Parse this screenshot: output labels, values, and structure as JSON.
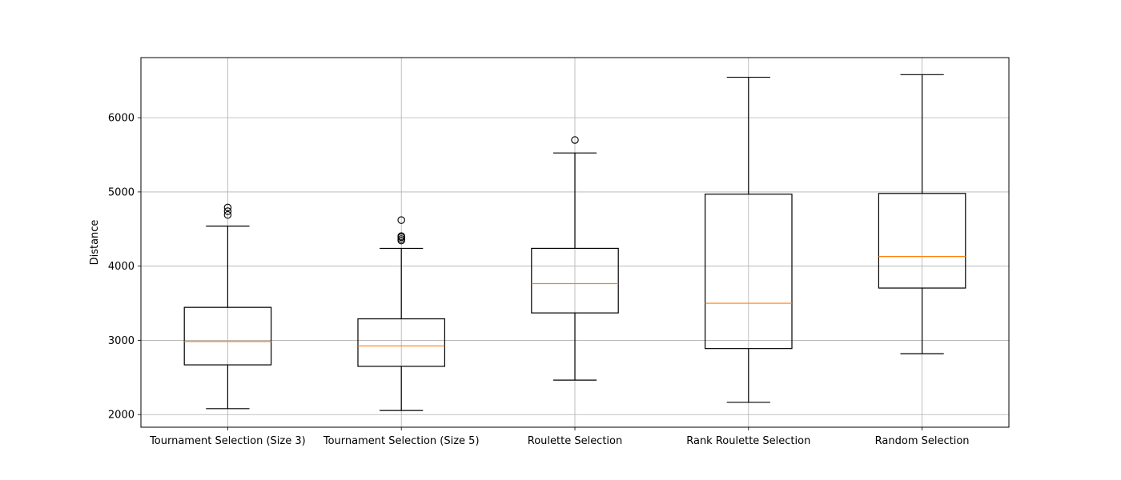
{
  "chart_data": {
    "type": "box",
    "title": "",
    "xlabel": "",
    "ylabel": "Distance",
    "ylim": [
      1830,
      6810
    ],
    "yticks": [
      2000,
      3000,
      4000,
      5000,
      6000
    ],
    "grid": true,
    "categories": [
      "Tournament Selection (Size 3)",
      "Tournament Selection (Size 5)",
      "Roulette Selection",
      "Rank Roulette Selection",
      "Random Selection"
    ],
    "boxes": [
      {
        "whisker_low": 2080,
        "q1": 2670,
        "median": 2985,
        "q3": 3445,
        "whisker_high": 4540,
        "outliers": [
          4690,
          4740,
          4790
        ]
      },
      {
        "whisker_low": 2055,
        "q1": 2650,
        "median": 2925,
        "q3": 3290,
        "whisker_high": 4240,
        "outliers": [
          4345,
          4365,
          4390,
          4405,
          4620
        ]
      },
      {
        "whisker_low": 2465,
        "q1": 3370,
        "median": 3765,
        "q3": 4240,
        "whisker_high": 5525,
        "outliers": [
          5700
        ]
      },
      {
        "whisker_low": 2165,
        "q1": 2890,
        "median": 3500,
        "q3": 4970,
        "whisker_high": 6545,
        "outliers": []
      },
      {
        "whisker_low": 2820,
        "q1": 3705,
        "median": 4130,
        "q3": 4980,
        "whisker_high": 6580,
        "outliers": []
      }
    ],
    "colors": {
      "box": "#000000",
      "median": "#ff7f0e",
      "grid": "#b0b0b0"
    }
  }
}
